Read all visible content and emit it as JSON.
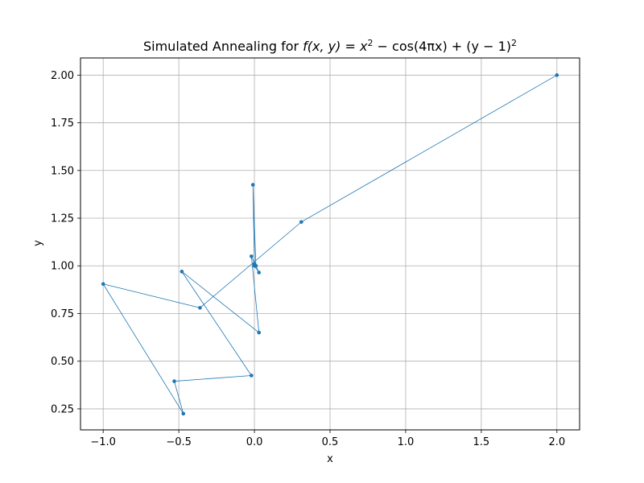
{
  "chart_data": {
    "type": "line",
    "title": "Simulated Annealing for f(x,y) = x² − cos(4πx) + (y − 1)²",
    "title_parts": {
      "prefix": "Simulated Annealing for ",
      "func": "f(x, y) = x",
      "sup1": "2",
      "mid": " − cos(4πx) + (y − 1)",
      "sup2": "2"
    },
    "xlabel": "x",
    "ylabel": "y",
    "xlim": [
      -1.15,
      2.15
    ],
    "ylim": [
      0.14,
      2.09
    ],
    "xticks": [
      -1.0,
      -0.5,
      0.0,
      0.5,
      1.0,
      1.5,
      2.0
    ],
    "xtick_labels": [
      "−1.0",
      "−0.5",
      "0.0",
      "0.5",
      "1.0",
      "1.5",
      "2.0"
    ],
    "yticks": [
      0.25,
      0.5,
      0.75,
      1.0,
      1.25,
      1.5,
      1.75,
      2.0
    ],
    "ytick_labels": [
      "0.25",
      "0.50",
      "0.75",
      "1.00",
      "1.25",
      "1.50",
      "1.75",
      "2.00"
    ],
    "grid": true,
    "color": "#1f77b4",
    "series": [
      {
        "x": [
          2.0,
          0.31,
          -0.36,
          -1.0,
          -0.47,
          -0.53,
          -0.02,
          -0.48,
          0.03,
          -0.02,
          0.03,
          0.0,
          0.0,
          0.01,
          -0.01,
          0.0
        ],
        "y": [
          2.0,
          1.23,
          0.78,
          0.905,
          0.225,
          0.395,
          0.425,
          0.97,
          0.65,
          1.05,
          0.965,
          1.0,
          1.01,
          1.0,
          1.425,
          1.0
        ]
      }
    ]
  }
}
